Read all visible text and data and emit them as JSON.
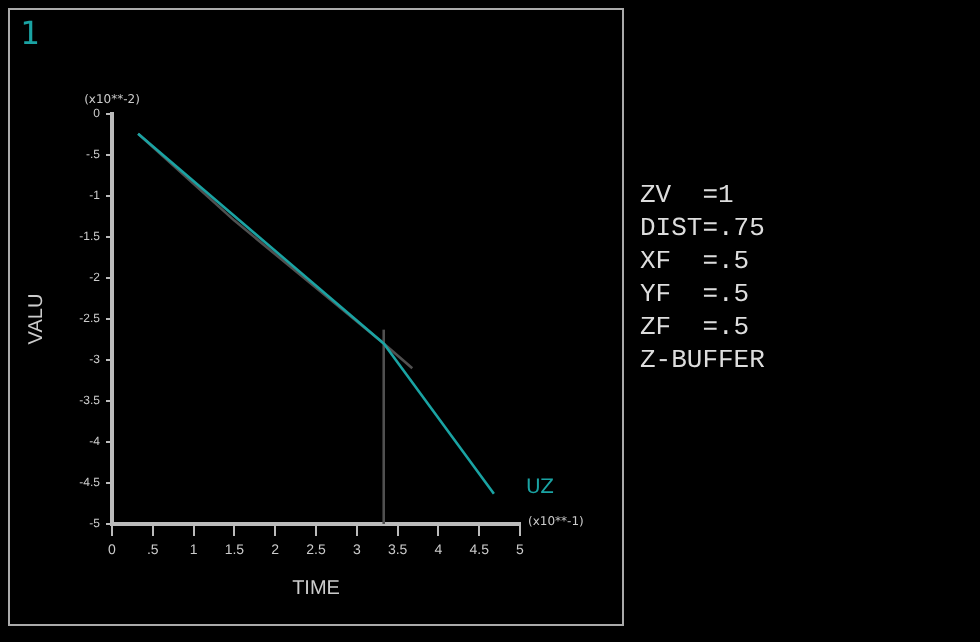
{
  "chart_data": {
    "type": "line",
    "xlabel": "TIME",
    "ylabel": "VALU",
    "annotations": [
      "1",
      "(x10**-2)",
      "(x10**-1)",
      "ZV  =1",
      "DIST=.75",
      "XF  =.5",
      "YF  =.5",
      "ZF  =.5",
      "Z-BUFFER"
    ],
    "xlim": [
      0,
      5
    ],
    "xticks": [
      0,
      {
        "value": 0.5,
        "label": ".5"
      },
      1,
      {
        "value": 1.5,
        "label": "1.5"
      },
      2,
      {
        "value": 2.5,
        "label": "2.5"
      },
      3,
      {
        "value": 3.5,
        "label": "3.5"
      },
      4,
      {
        "value": 4.5,
        "label": "4.5"
      },
      5
    ],
    "ylim": [
      -5,
      0
    ],
    "yticks": [
      -5,
      {
        "value": -4.5,
        "label": "-4.5"
      },
      -4,
      {
        "value": -3.5,
        "label": "-3.5"
      },
      -3,
      {
        "value": -2.5,
        "label": "-2.5"
      },
      -2,
      {
        "value": -1.5,
        "label": "-1.5"
      },
      -1,
      {
        "value": -0.5,
        "label": "-.5"
      },
      0
    ],
    "grid": false,
    "legend": false,
    "marker": "none",
    "line_style": "solid",
    "series": [
      {
        "name": "UZ",
        "color": "#1aa3a3",
        "x": [
          0.32,
          3.33,
          4.68
        ],
        "values": [
          -0.24,
          -2.8,
          -4.63
        ]
      },
      {
        "color": "#505050",
        "x": [
          0.32,
          1.5,
          3.33,
          3.68
        ],
        "values": [
          -0.24,
          -1.3,
          -2.8,
          -3.1
        ]
      },
      {
        "color": "#505050",
        "x": [
          3.33,
          3.33
        ],
        "values": [
          -5,
          -2.63
        ]
      }
    ]
  }
}
